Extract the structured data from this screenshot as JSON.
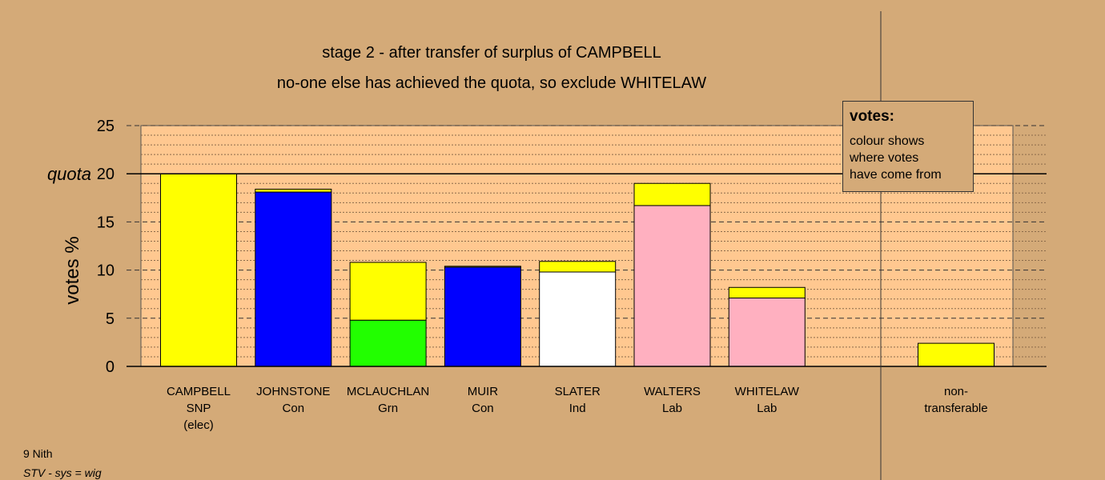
{
  "chart_data": {
    "type": "bar",
    "stacked": true,
    "title": "stage 2 - after transfer of surplus of CAMPBELL",
    "subtitle": "no-one else has achieved the quota, so exclude WHITELAW",
    "ylabel": "votes %",
    "ylim": [
      0,
      25
    ],
    "yticks": [
      "0",
      "5",
      "10",
      "15",
      "20",
      "25"
    ],
    "quota_label": "quota",
    "quota_value": 20,
    "grid": true,
    "categories": [
      {
        "name": "CAMPBELL",
        "party": "SNP",
        "note": "(elec)"
      },
      {
        "name": "JOHNSTONE",
        "party": "Con",
        "note": ""
      },
      {
        "name": "MCLAUCHLAN",
        "party": "Grn",
        "note": ""
      },
      {
        "name": "MUIR",
        "party": "Con",
        "note": ""
      },
      {
        "name": "SLATER",
        "party": "Ind",
        "note": ""
      },
      {
        "name": "WALTERS",
        "party": "Lab",
        "note": ""
      },
      {
        "name": "WHITELAW",
        "party": "Lab",
        "note": ""
      }
    ],
    "segments": [
      [
        {
          "value": 20.0,
          "color": "#ffff00"
        }
      ],
      [
        {
          "value": 18.1,
          "color": "#0000ff"
        },
        {
          "value": 0.3,
          "color": "#ffff00"
        }
      ],
      [
        {
          "value": 4.8,
          "color": "#22ff00"
        },
        {
          "value": 6.0,
          "color": "#ffff00"
        }
      ],
      [
        {
          "value": 10.3,
          "color": "#0000ff"
        },
        {
          "value": 0.1,
          "color": "#ffff00"
        }
      ],
      [
        {
          "value": 9.8,
          "color": "#ffffff"
        },
        {
          "value": 1.1,
          "color": "#ffff00"
        }
      ],
      [
        {
          "value": 16.7,
          "color": "#ffb0c0"
        },
        {
          "value": 2.3,
          "color": "#ffff00"
        }
      ],
      [
        {
          "value": 7.1,
          "color": "#ffb0c0"
        },
        {
          "value": 1.1,
          "color": "#ffff00"
        }
      ]
    ],
    "nontransferable": {
      "label_lines": [
        "non-",
        "transferable"
      ],
      "value": 2.4,
      "color": "#ffff00"
    },
    "colors": {
      "background": "#d4aa78",
      "plot_area": "#ffc890"
    }
  },
  "legend": {
    "title": "votes:",
    "lines": [
      "colour shows",
      "where votes",
      "have come from"
    ]
  },
  "footer": {
    "line1": "9 Nith",
    "line2": "STV - sys = wig"
  }
}
